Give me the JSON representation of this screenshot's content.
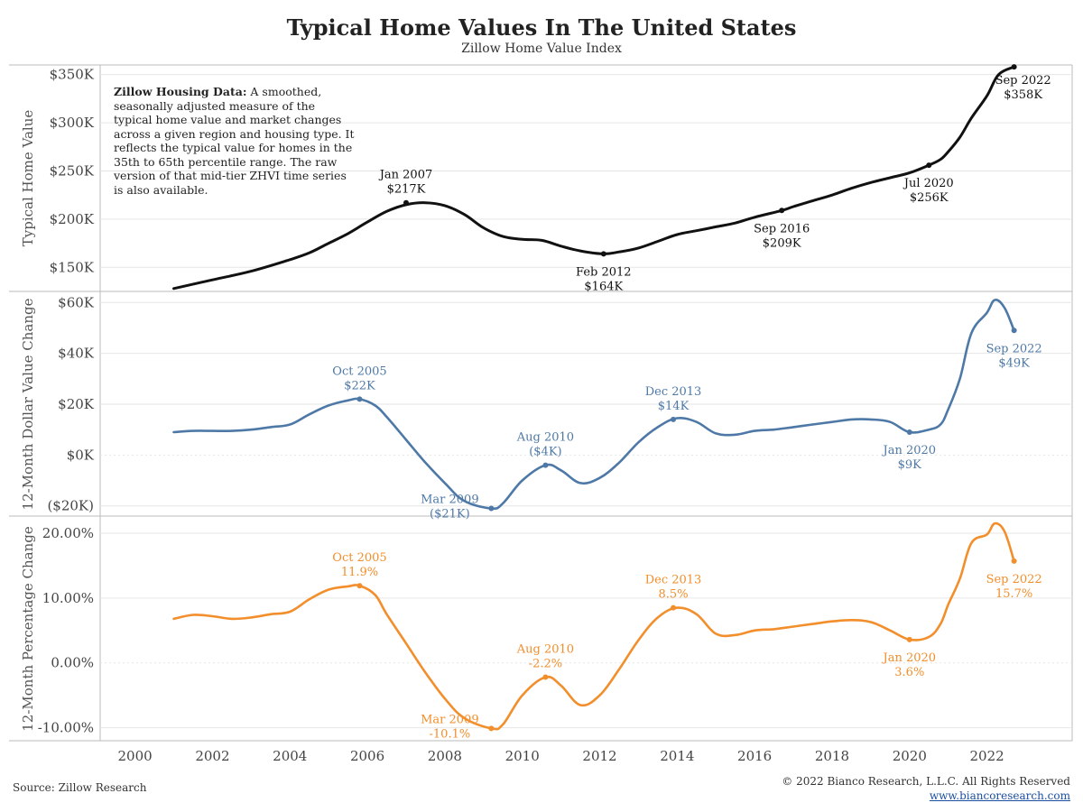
{
  "header": {
    "title": "Typical Home Values In The United States",
    "subtitle": "Zillow Home Value Index"
  },
  "footer": {
    "source": "Source: Zillow Research",
    "copyright": "© 2022 Bianco Research, L.L.C. All Rights Reserved",
    "url": "www.biancoresearch.com"
  },
  "note": {
    "bold": "Zillow Housing Data:",
    "text": " A smoothed, seasonally adjusted measure of the typical home value and market changes across a given region and housing type. It reflects the typical value for homes in the 35th to 65th percentile range. The raw version of that mid-tier ZHVI time series is also available."
  },
  "colors": {
    "value": "#111111",
    "dollar": "#4e79a7",
    "percent": "#f28e2b",
    "grid": "#e6e6e6",
    "border": "#bbbbbb"
  },
  "chart_data": [
    {
      "type": "line",
      "ylabel": "Typical Home Value",
      "ylim": [
        125,
        360
      ],
      "yticks": [
        150,
        200,
        250,
        300,
        350
      ],
      "ytick_labels": [
        "$150K",
        "$200K",
        "$250K",
        "$300K",
        "$350K"
      ],
      "x": [
        2001,
        2002,
        2003,
        2004,
        2004.5,
        2005,
        2005.5,
        2006,
        2006.5,
        2007,
        2007.5,
        2008,
        2008.5,
        2009,
        2009.5,
        2010,
        2010.5,
        2011,
        2011.5,
        2012.1,
        2012.5,
        2013,
        2013.5,
        2014,
        2014.5,
        2015,
        2015.5,
        2016,
        2016.7,
        2017,
        2017.5,
        2018,
        2018.5,
        2019,
        2019.5,
        2020,
        2020.5,
        2020.8,
        2021,
        2021.3,
        2021.6,
        2022,
        2022.3,
        2022.7
      ],
      "series": [
        {
          "values": [
            128,
            137,
            146,
            158,
            165,
            175,
            185,
            197,
            208,
            215,
            217,
            214,
            205,
            191,
            182,
            179,
            178,
            172,
            167,
            164,
            166,
            170,
            177,
            184,
            188,
            192,
            196,
            202,
            209,
            213,
            219,
            225,
            232,
            238,
            243,
            248,
            256,
            262,
            270,
            285,
            305,
            328,
            350,
            358
          ]
        }
      ],
      "annotations": [
        {
          "x": 2007,
          "y": 217,
          "label": "Jan 2007",
          "value": "$217K"
        },
        {
          "x": 2012.1,
          "y": 164,
          "label": "Feb 2012",
          "value": "$164K"
        },
        {
          "x": 2016.7,
          "y": 209,
          "label": "Sep 2016",
          "value": "$209K"
        },
        {
          "x": 2020.5,
          "y": 256,
          "label": "Jul 2020",
          "value": "$256K"
        },
        {
          "x": 2022.7,
          "y": 358,
          "label": "Sep 2022",
          "value": "$358K"
        }
      ]
    },
    {
      "type": "line",
      "ylabel": "12-Month Dollar Value Change",
      "ylim": [
        -24,
        64
      ],
      "yticks": [
        -20,
        0,
        20,
        40,
        60
      ],
      "ytick_labels": [
        "($20K)",
        "$0K",
        "$20K",
        "$40K",
        "$60K"
      ],
      "x": [
        2001,
        2001.5,
        2002,
        2002.5,
        2003,
        2003.5,
        2004,
        2004.5,
        2005,
        2005.5,
        2005.8,
        2006.2,
        2006.5,
        2007,
        2007.5,
        2008,
        2008.5,
        2009.2,
        2009.5,
        2010,
        2010.6,
        2011,
        2011.5,
        2012,
        2012.5,
        2013,
        2013.5,
        2014,
        2014.5,
        2015,
        2015.5,
        2016,
        2016.5,
        2017,
        2017.5,
        2018,
        2018.5,
        2019,
        2019.5,
        2020,
        2020.5,
        2020.8,
        2021,
        2021.3,
        2021.6,
        2022,
        2022.2,
        2022.45,
        2022.7
      ],
      "series": [
        {
          "values": [
            9,
            9.5,
            9.5,
            9.5,
            10,
            11,
            12,
            16,
            19.5,
            21.5,
            22,
            19.5,
            15,
            6,
            -3,
            -11,
            -18,
            -21,
            -19,
            -10,
            -4,
            -6,
            -11,
            -9,
            -3,
            5,
            11,
            14.5,
            13,
            8.5,
            8,
            9.5,
            10,
            11,
            12,
            13,
            14,
            14,
            13,
            9,
            10,
            12,
            18,
            30,
            48,
            56,
            61,
            58,
            49
          ]
        }
      ],
      "annotations": [
        {
          "x": 2005.8,
          "y": 22,
          "label": "Oct 2005",
          "value": "$22K",
          "pos": "above"
        },
        {
          "x": 2009.2,
          "y": -21,
          "label": "Mar 2009",
          "value": "($21K)",
          "pos": "below-left"
        },
        {
          "x": 2010.6,
          "y": -4,
          "label": "Aug 2010",
          "value": "($4K)",
          "pos": "above"
        },
        {
          "x": 2013.9,
          "y": 14,
          "label": "Dec 2013",
          "value": "$14K",
          "pos": "above"
        },
        {
          "x": 2020,
          "y": 9,
          "label": "Jan 2020",
          "value": "$9K",
          "pos": "below"
        },
        {
          "x": 2022.7,
          "y": 49,
          "label": "Sep 2022",
          "value": "$49K",
          "pos": "below"
        }
      ]
    },
    {
      "type": "line",
      "ylabel": "12-Month Percentage Change",
      "ylim": [
        -12,
        22.5
      ],
      "yticks": [
        -10,
        0,
        10,
        20
      ],
      "ytick_labels": [
        "-10.00%",
        "0.00%",
        "10.00%",
        "20.00%"
      ],
      "x": [
        2001,
        2001.5,
        2002,
        2002.5,
        2003,
        2003.5,
        2004,
        2004.5,
        2005,
        2005.5,
        2005.8,
        2006.2,
        2006.5,
        2007,
        2007.5,
        2008,
        2008.5,
        2009.2,
        2009.5,
        2010,
        2010.6,
        2011,
        2011.5,
        2012,
        2012.5,
        2013,
        2013.5,
        2014,
        2014.5,
        2015,
        2015.5,
        2016,
        2016.5,
        2017,
        2017.5,
        2018,
        2018.5,
        2019,
        2019.5,
        2020,
        2020.5,
        2020.8,
        2021,
        2021.3,
        2021.6,
        2022,
        2022.2,
        2022.45,
        2022.7
      ],
      "series": [
        {
          "values": [
            6.8,
            7.4,
            7.2,
            6.8,
            7.0,
            7.5,
            7.9,
            9.8,
            11.3,
            11.8,
            11.9,
            10.5,
            7.5,
            3.0,
            -1.5,
            -5.5,
            -8.5,
            -10.1,
            -9.5,
            -5.0,
            -2.2,
            -3.5,
            -6.5,
            -5.0,
            -1.0,
            3.5,
            7.0,
            8.5,
            7.5,
            4.5,
            4.3,
            5.0,
            5.2,
            5.6,
            6.0,
            6.4,
            6.6,
            6.3,
            5.0,
            3.6,
            4.0,
            6.0,
            9.0,
            13.0,
            18.5,
            19.8,
            21.5,
            20.3,
            15.7
          ]
        }
      ],
      "annotations": [
        {
          "x": 2005.8,
          "y": 11.9,
          "label": "Oct 2005",
          "value": "11.9%",
          "pos": "above"
        },
        {
          "x": 2009.2,
          "y": -10.1,
          "label": "Mar 2009",
          "value": "-10.1%",
          "pos": "below-left"
        },
        {
          "x": 2010.6,
          "y": -2.2,
          "label": "Aug 2010",
          "value": "-2.2%",
          "pos": "above"
        },
        {
          "x": 2013.9,
          "y": 8.5,
          "label": "Dec 2013",
          "value": "8.5%",
          "pos": "above"
        },
        {
          "x": 2020,
          "y": 3.6,
          "label": "Jan 2020",
          "value": "3.6%",
          "pos": "below"
        },
        {
          "x": 2022.7,
          "y": 15.7,
          "label": "Sep 2022",
          "value": "15.7%",
          "pos": "below"
        }
      ]
    }
  ],
  "x_axis": {
    "ticks": [
      2000,
      2002,
      2004,
      2006,
      2008,
      2010,
      2012,
      2014,
      2016,
      2018,
      2020,
      2022
    ],
    "xlim": [
      1999.1,
      2024.2
    ]
  }
}
